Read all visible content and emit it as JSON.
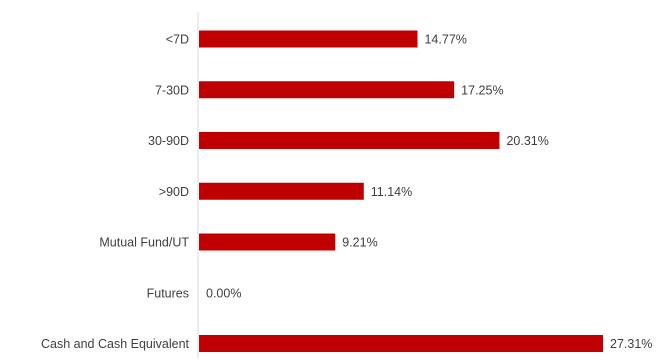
{
  "chart_data": {
    "type": "bar",
    "orientation": "horizontal",
    "categories": [
      "<7D",
      "7-30D",
      "30-90D",
      ">90D",
      "Mutual Fund/UT",
      "Futures",
      "Cash and Cash Equivalent"
    ],
    "values": [
      14.77,
      17.25,
      20.31,
      11.14,
      9.21,
      0.0,
      27.31
    ],
    "value_labels": [
      "14.77%",
      "17.25%",
      "20.31%",
      "11.14%",
      "9.21%",
      "0.00%",
      "27.31%"
    ],
    "unit": "%",
    "xlim": [
      0,
      27.31
    ],
    "grid": false,
    "legend": "none",
    "bar_color": "#c00000",
    "axis_color": "#d9d9d9",
    "text_color": "#404040"
  }
}
